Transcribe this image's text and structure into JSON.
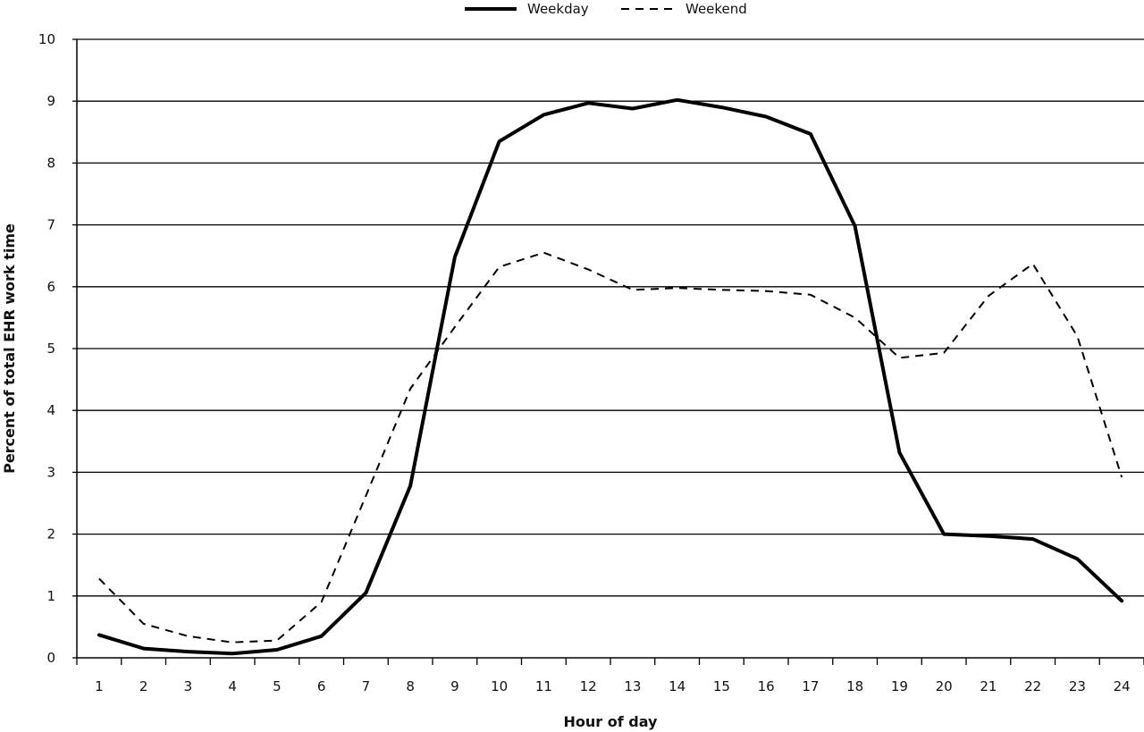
{
  "chart_data": {
    "type": "line",
    "xlabel": "Hour of day",
    "ylabel": "Percent of total EHR work time",
    "x": [
      1,
      2,
      3,
      4,
      5,
      6,
      7,
      8,
      9,
      10,
      11,
      12,
      13,
      14,
      15,
      16,
      17,
      18,
      19,
      20,
      21,
      22,
      23,
      24
    ],
    "ylim": [
      0,
      10
    ],
    "yticks": [
      0,
      1,
      2,
      3,
      4,
      5,
      6,
      7,
      8,
      9,
      10
    ],
    "grid": "horizontal",
    "legend_position": "top-center",
    "series": [
      {
        "name": "Weekday",
        "style": "solid",
        "color": "#000000",
        "values": [
          0.37,
          0.15,
          0.1,
          0.07,
          0.13,
          0.35,
          1.05,
          2.78,
          6.48,
          8.35,
          8.78,
          8.97,
          8.88,
          9.02,
          8.9,
          8.75,
          8.47,
          6.98,
          3.32,
          2.0,
          1.97,
          1.92,
          1.6,
          0.92
        ]
      },
      {
        "name": "Weekend",
        "style": "dashed",
        "color": "#000000",
        "values": [
          1.28,
          0.55,
          0.35,
          0.25,
          0.28,
          0.9,
          2.62,
          4.35,
          5.35,
          6.32,
          6.55,
          6.28,
          5.95,
          5.98,
          5.95,
          5.93,
          5.87,
          5.5,
          4.85,
          4.93,
          5.85,
          6.37,
          5.2,
          2.92
        ]
      }
    ]
  }
}
